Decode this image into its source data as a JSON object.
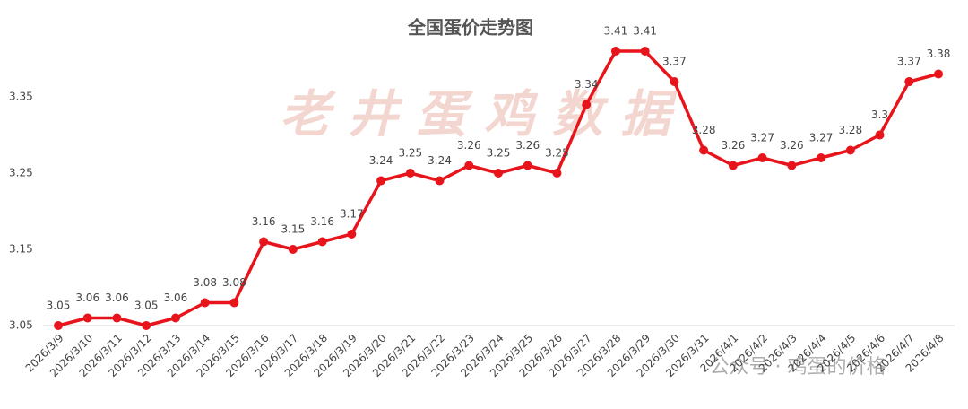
{
  "chart_data": {
    "type": "line",
    "title": "全国蛋价走势图",
    "categories": [
      "2026/3/9",
      "2026/3/10",
      "2026/3/11",
      "2026/3/12",
      "2026/3/13",
      "2026/3/14",
      "2026/3/15",
      "2026/3/16",
      "2026/3/17",
      "2026/3/18",
      "2026/3/19",
      "2026/3/20",
      "2026/3/21",
      "2026/3/22",
      "2026/3/23",
      "2026/3/24",
      "2026/3/25",
      "2026/3/26",
      "2026/3/27",
      "2026/3/28",
      "2026/3/29",
      "2026/3/30",
      "2026/3/31",
      "2026/4/1",
      "2026/4/2",
      "2026/4/3",
      "2026/4/4",
      "2026/4/5",
      "2026/4/6",
      "2026/4/7",
      "2026/4/8"
    ],
    "values": [
      3.05,
      3.06,
      3.06,
      3.05,
      3.06,
      3.08,
      3.08,
      3.16,
      3.15,
      3.16,
      3.17,
      3.24,
      3.25,
      3.24,
      3.26,
      3.25,
      3.26,
      3.25,
      3.34,
      3.41,
      3.41,
      3.37,
      3.28,
      3.26,
      3.27,
      3.26,
      3.27,
      3.28,
      3.3,
      3.37,
      3.38
    ],
    "color": "#e8141b",
    "ylim": [
      3.05,
      3.45
    ],
    "yticks": [
      3.05,
      3.15,
      3.25,
      3.35
    ],
    "watermarks": [
      "老井蛋鸡数据",
      "公众号 · 鸡蛋的价格"
    ]
  }
}
